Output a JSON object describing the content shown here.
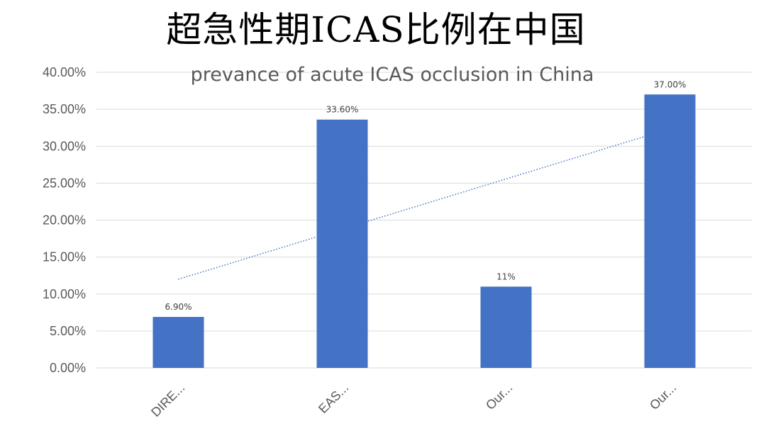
{
  "slide": {
    "title": "超急性期ICAS比例在中国"
  },
  "chart_data": {
    "type": "bar",
    "title": "prevance of acute ICAS occlusion in China",
    "categories": [
      "DIRE...",
      "EAS...",
      "Our...",
      "Our..."
    ],
    "series": [
      {
        "values": [
          0.069,
          0.336,
          0.11,
          0.37
        ],
        "data_labels": [
          "6.90%",
          "33.60%",
          "11%",
          "37.00%"
        ],
        "color": "#4472c4"
      }
    ],
    "y_ticks": [
      "0.00%",
      "5.00%",
      "10.00%",
      "15.00%",
      "20.00%",
      "25.00%",
      "30.00%",
      "35.00%",
      "40.00%"
    ],
    "ylim": [
      0,
      0.4
    ],
    "grid": true,
    "trendline": {
      "type": "linear",
      "style": "dotted",
      "color": "#4472c4",
      "start_value": 0.12,
      "end_value": 0.313
    },
    "legend": "none"
  }
}
